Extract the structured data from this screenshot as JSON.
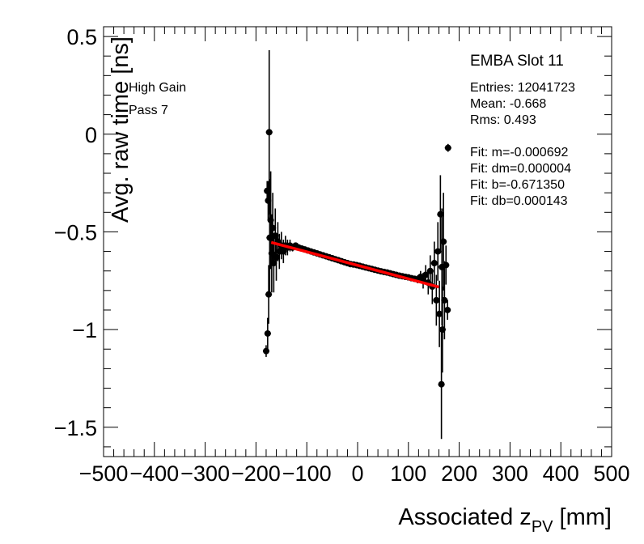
{
  "chart_data": {
    "type": "scatter",
    "title": "EMBA Slot 11",
    "xlabel_main": "Associated z",
    "xlabel_sub": "PV",
    "xlabel_unit": " [mm]",
    "ylabel": "Avg. raw time [ns]",
    "xlim": [
      -500,
      500
    ],
    "ylim": [
      -1.65,
      0.55
    ],
    "x_ticks": [
      -500,
      -400,
      -300,
      -200,
      -100,
      0,
      100,
      200,
      300,
      400,
      500
    ],
    "x_tick_labels": [
      "−500",
      "−400",
      "−300",
      "−200",
      "−100",
      "0",
      "100",
      "200",
      "300",
      "400",
      "500"
    ],
    "y_ticks": [
      0.5,
      0,
      -0.5,
      -1,
      -1.5
    ],
    "y_tick_labels": [
      "0.5",
      "0",
      "−0.5",
      "−1",
      "−1.5"
    ],
    "grid": false,
    "annotations": [
      "High Gain",
      "Pass 7"
    ],
    "stats": [
      "Entries: 12041723",
      "Mean: -0.668",
      "Rms: 0.493",
      "Fit: m=-0.000692",
      "Fit: dm=0.000004",
      "Fit: b=-0.671350",
      "Fit: db=0.000143"
    ],
    "fit_line": {
      "m": -0.000692,
      "b": -0.67135,
      "x_range": [
        -170,
        160
      ],
      "color": "#ff0000"
    },
    "series": [
      {
        "points": [
          {
            "x": -180,
            "y": -1.11,
            "err": 0.03
          },
          {
            "x": -177,
            "y": -1.02,
            "err": 0.08
          },
          {
            "x": -175,
            "y": -0.82,
            "err": 0.15
          },
          {
            "x": -174,
            "y": 0.01,
            "err": 0.42
          },
          {
            "x": -178,
            "y": -0.29,
            "err": 0.05
          },
          {
            "x": -176,
            "y": -0.34,
            "err": 0.1
          },
          {
            "x": -173,
            "y": -0.53,
            "err": 0.3
          },
          {
            "x": -171,
            "y": -0.44,
            "err": 0.25
          },
          {
            "x": -169,
            "y": -0.61,
            "err": 0.2
          },
          {
            "x": -167,
            "y": -0.48,
            "err": 0.18
          },
          {
            "x": -165,
            "y": -0.66,
            "err": 0.15
          },
          {
            "x": -162,
            "y": -0.52,
            "err": 0.14
          },
          {
            "x": -160,
            "y": -0.63,
            "err": 0.12
          },
          {
            "x": -157,
            "y": -0.55,
            "err": 0.1
          },
          {
            "x": -154,
            "y": -0.6,
            "err": 0.09
          },
          {
            "x": -150,
            "y": -0.57,
            "err": 0.07
          },
          {
            "x": -146,
            "y": -0.6,
            "err": 0.06
          },
          {
            "x": -142,
            "y": -0.57,
            "err": 0.05
          },
          {
            "x": -138,
            "y": -0.58,
            "err": 0.04
          },
          {
            "x": -133,
            "y": -0.57,
            "err": 0.03
          },
          {
            "x": -128,
            "y": -0.58,
            "err": 0.02
          },
          {
            "x": -122,
            "y": -0.57,
            "err": 0.015
          },
          {
            "x": -116,
            "y": -0.58,
            "err": 0.012
          },
          {
            "x": -110,
            "y": -0.585,
            "err": 0.01
          },
          {
            "x": -104,
            "y": -0.59,
            "err": 0.01
          },
          {
            "x": -98,
            "y": -0.595,
            "err": 0.01
          },
          {
            "x": -92,
            "y": -0.6,
            "err": 0.01
          },
          {
            "x": -86,
            "y": -0.605,
            "err": 0.01
          },
          {
            "x": -80,
            "y": -0.61,
            "err": 0.008
          },
          {
            "x": -74,
            "y": -0.615,
            "err": 0.008
          },
          {
            "x": -68,
            "y": -0.62,
            "err": 0.008
          },
          {
            "x": -62,
            "y": -0.625,
            "err": 0.008
          },
          {
            "x": -56,
            "y": -0.63,
            "err": 0.008
          },
          {
            "x": -50,
            "y": -0.635,
            "err": 0.008
          },
          {
            "x": -44,
            "y": -0.64,
            "err": 0.008
          },
          {
            "x": -38,
            "y": -0.645,
            "err": 0.008
          },
          {
            "x": -32,
            "y": -0.65,
            "err": 0.008
          },
          {
            "x": -26,
            "y": -0.655,
            "err": 0.008
          },
          {
            "x": -20,
            "y": -0.66,
            "err": 0.008
          },
          {
            "x": -14,
            "y": -0.665,
            "err": 0.008
          },
          {
            "x": -8,
            "y": -0.667,
            "err": 0.008
          },
          {
            "x": -2,
            "y": -0.67,
            "err": 0.008
          },
          {
            "x": 4,
            "y": -0.674,
            "err": 0.008
          },
          {
            "x": 10,
            "y": -0.678,
            "err": 0.008
          },
          {
            "x": 16,
            "y": -0.682,
            "err": 0.008
          },
          {
            "x": 22,
            "y": -0.686,
            "err": 0.008
          },
          {
            "x": 28,
            "y": -0.69,
            "err": 0.008
          },
          {
            "x": 34,
            "y": -0.694,
            "err": 0.008
          },
          {
            "x": 40,
            "y": -0.698,
            "err": 0.008
          },
          {
            "x": 46,
            "y": -0.702,
            "err": 0.008
          },
          {
            "x": 52,
            "y": -0.705,
            "err": 0.008
          },
          {
            "x": 58,
            "y": -0.708,
            "err": 0.008
          },
          {
            "x": 64,
            "y": -0.712,
            "err": 0.008
          },
          {
            "x": 70,
            "y": -0.716,
            "err": 0.008
          },
          {
            "x": 76,
            "y": -0.72,
            "err": 0.008
          },
          {
            "x": 82,
            "y": -0.724,
            "err": 0.01
          },
          {
            "x": 88,
            "y": -0.727,
            "err": 0.01
          },
          {
            "x": 94,
            "y": -0.73,
            "err": 0.01
          },
          {
            "x": 100,
            "y": -0.733,
            "err": 0.012
          },
          {
            "x": 106,
            "y": -0.737,
            "err": 0.012
          },
          {
            "x": 112,
            "y": -0.74,
            "err": 0.015
          },
          {
            "x": 118,
            "y": -0.743,
            "err": 0.02
          },
          {
            "x": 124,
            "y": -0.73,
            "err": 0.03
          },
          {
            "x": 129,
            "y": -0.75,
            "err": 0.04
          },
          {
            "x": 134,
            "y": -0.72,
            "err": 0.05
          },
          {
            "x": 139,
            "y": -0.76,
            "err": 0.06
          },
          {
            "x": 143,
            "y": -0.7,
            "err": 0.08
          },
          {
            "x": 147,
            "y": -0.78,
            "err": 0.09
          },
          {
            "x": 151,
            "y": -0.66,
            "err": 0.11
          },
          {
            "x": 155,
            "y": -0.85,
            "err": 0.13
          },
          {
            "x": 158,
            "y": -0.6,
            "err": 0.15
          },
          {
            "x": 161,
            "y": -0.92,
            "err": 0.17
          },
          {
            "x": 163,
            "y": -0.41,
            "err": 0.2
          },
          {
            "x": 165,
            "y": -1.28,
            "err": 0.28
          },
          {
            "x": 166,
            "y": -0.68,
            "err": 0.3
          },
          {
            "x": 167,
            "y": -1.0,
            "err": 0.22
          },
          {
            "x": 169,
            "y": -0.55,
            "err": 0.25
          },
          {
            "x": 171,
            "y": -0.85,
            "err": 0.2
          },
          {
            "x": 174,
            "y": -0.67,
            "err": 0.1
          },
          {
            "x": 177,
            "y": -0.9,
            "err": 0.05
          },
          {
            "x": 178,
            "y": -0.07,
            "err": 0.02
          }
        ]
      }
    ]
  }
}
